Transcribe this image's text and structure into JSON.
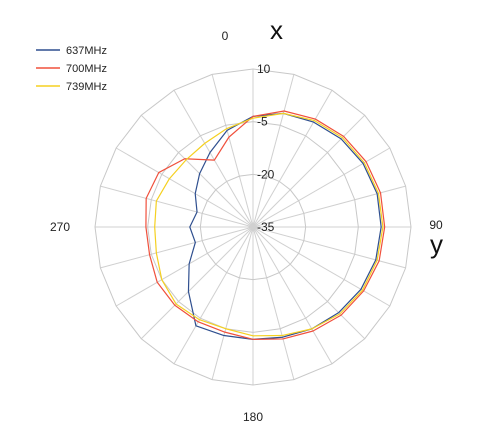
{
  "chart_data": {
    "type": "polar-line",
    "title": "",
    "axis_labels": {
      "top": "x",
      "right": "y"
    },
    "angle_labels": [
      {
        "deg": 0,
        "text": "0"
      },
      {
        "deg": 90,
        "text": "90"
      },
      {
        "deg": 180,
        "text": "180"
      },
      {
        "deg": 270,
        "text": "270"
      }
    ],
    "radial_range": [
      -35,
      10
    ],
    "radial_ticks": [
      {
        "value": 10,
        "text": "10"
      },
      {
        "value": -5,
        "text": "-5"
      },
      {
        "value": -20,
        "text": "-20"
      },
      {
        "value": -35,
        "text": "-35"
      }
    ],
    "angular_grid_step_deg": 15,
    "grid": true,
    "legend_position": "top-left",
    "angles": [
      0,
      15,
      30,
      45,
      60,
      75,
      90,
      105,
      120,
      135,
      150,
      165,
      180,
      195,
      210,
      225,
      240,
      255,
      270,
      285,
      300,
      315,
      330,
      345
    ],
    "series": [
      {
        "name": "637MHz",
        "color": "#2f4f8f",
        "values": [
          -3.5,
          -1.5,
          -0.5,
          0.5,
          1.2,
          1.6,
          1.5,
          1.2,
          0.5,
          -0.5,
          -1.5,
          -2.5,
          -3.0,
          -3.0,
          -2.5,
          -9.0,
          -14.0,
          -18.0,
          -17.0,
          -18.5,
          -16.0,
          -13.5,
          -10.5,
          -6.5
        ]
      },
      {
        "name": "700MHz",
        "color": "#f0503c",
        "values": [
          -3.5,
          -0.8,
          0.5,
          1.5,
          2.2,
          2.6,
          2.5,
          2.2,
          1.4,
          0.5,
          -0.8,
          -2.0,
          -3.0,
          -4.0,
          -3.8,
          -3.5,
          -3.5,
          -4.5,
          -4.5,
          -3.5,
          -4.0,
          -7.5,
          -13.0,
          -8.5
        ]
      },
      {
        "name": "739MHz",
        "color": "#f5d020",
        "values": [
          -4.0,
          -1.5,
          0.0,
          1.0,
          1.6,
          2.0,
          2.0,
          1.6,
          1.0,
          0.0,
          -1.5,
          -3.0,
          -4.0,
          -5.0,
          -4.5,
          -4.0,
          -5.0,
          -6.5,
          -7.0,
          -6.5,
          -7.5,
          -8.0,
          -7.5,
          -6.0
        ]
      }
    ]
  }
}
